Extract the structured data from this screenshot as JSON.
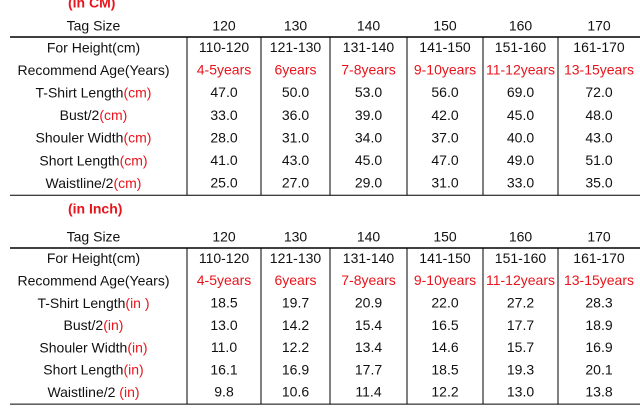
{
  "tables": [
    {
      "title": "(in CM)",
      "header": [
        "Tag Size",
        "120",
        "130",
        "140",
        "150",
        "160",
        "170"
      ],
      "rows": [
        {
          "label": "For Height(cm)",
          "cells": [
            "110-120",
            "121-130",
            "131-140",
            "141-150",
            "151-160",
            "161-170"
          ]
        },
        {
          "label": "Recommend Age(Years)",
          "cells": [
            "4-5years",
            "6years",
            "7-8years",
            "9-10years",
            "11-12years",
            "13-15years"
          ]
        },
        {
          "label": "T-Shirt Length",
          "unit": "(cm)",
          "cells": [
            "47.0",
            "50.0",
            "53.0",
            "56.0",
            "69.0",
            "72.0"
          ]
        },
        {
          "label": "Bust/2",
          "unit": "(cm)",
          "cells": [
            "33.0",
            "36.0",
            "39.0",
            "42.0",
            "45.0",
            "48.0"
          ]
        },
        {
          "label": "Shouler Width",
          "unit": "(cm)",
          "cells": [
            "28.0",
            "31.0",
            "34.0",
            "37.0",
            "40.0",
            "43.0"
          ]
        },
        {
          "label": "Short Length",
          "unit": "(cm)",
          "cells": [
            "41.0",
            "43.0",
            "45.0",
            "47.0",
            "49.0",
            "51.0"
          ]
        },
        {
          "label": "Waistline/2",
          "unit": "(cm)",
          "cells": [
            "25.0",
            "27.0",
            "29.0",
            "31.0",
            "33.0",
            "35.0"
          ]
        }
      ]
    },
    {
      "title": "(in Inch)",
      "header": [
        "Tag Size",
        "120",
        "130",
        "140",
        "150",
        "160",
        "170"
      ],
      "rows": [
        {
          "label": "For Height(cm)",
          "cells": [
            "110-120",
            "121-130",
            "131-140",
            "141-150",
            "151-160",
            "161-170"
          ]
        },
        {
          "label": "Recommend Age(Years)",
          "cells": [
            "4-5years",
            "6years",
            "7-8years",
            "9-10years",
            "11-12years",
            "13-15years"
          ]
        },
        {
          "label": "T-Shirt Length",
          "unit": "(in )",
          "cells": [
            "18.5",
            "19.7",
            "20.9",
            "22.0",
            "27.2",
            "28.3"
          ]
        },
        {
          "label": "Bust/2",
          "unit": "(in)",
          "cells": [
            "13.0",
            "14.2",
            "15.4",
            "16.5",
            "17.7",
            "18.9"
          ]
        },
        {
          "label": "Shouler Width",
          "unit": "(in)",
          "cells": [
            "11.0",
            "12.2",
            "13.4",
            "14.6",
            "15.7",
            "16.9"
          ]
        },
        {
          "label": "Short Length",
          "unit": "(in)",
          "cells": [
            "16.1",
            "16.9",
            "17.7",
            "18.5",
            "19.3",
            "20.1"
          ]
        },
        {
          "label": "Waistline/2 ",
          "unit": "(in)",
          "cells": [
            "9.8",
            "10.6",
            "11.4",
            "12.2",
            "13.0",
            "13.8"
          ]
        }
      ]
    }
  ]
}
